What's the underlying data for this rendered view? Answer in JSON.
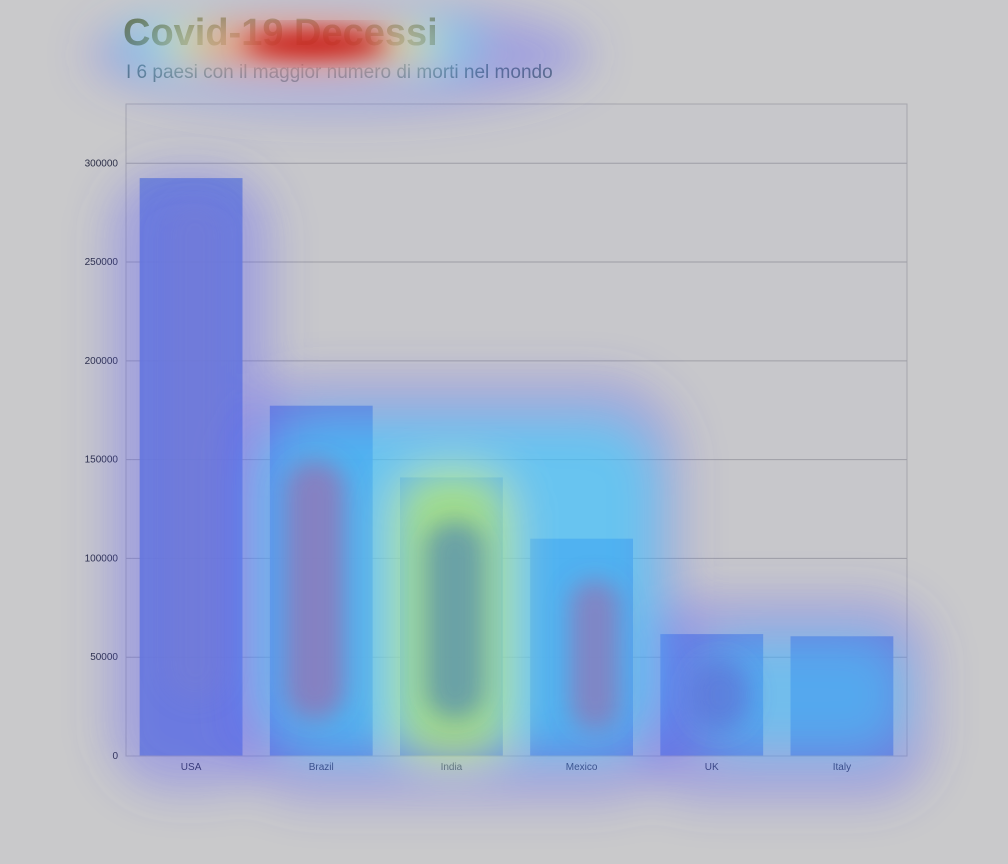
{
  "header": {
    "title": "Covid-19 Decessi",
    "subtitle": "I 6 paesi con il maggior numero di morti nel mondo"
  },
  "colors": {
    "background": "#c9c9cb",
    "plot_background": "#c7c7cb",
    "bar": "#6d86cf",
    "gridline": "#9e9ea6"
  },
  "chart_data": {
    "type": "bar",
    "title": "Covid-19 Decessi",
    "subtitle": "I 6 paesi con il maggior numero di morti nel mondo",
    "categories": [
      "USA",
      "Brazil",
      "India",
      "Mexico",
      "UK",
      "Italy"
    ],
    "values": [
      292500,
      177300,
      141000,
      110000,
      61700,
      60600
    ],
    "xlabel": "",
    "ylabel": "",
    "ylim": [
      0,
      330000
    ],
    "yticks": [
      0,
      50000,
      100000,
      150000,
      200000,
      250000,
      300000
    ],
    "ytick_labels": [
      "0",
      "50000",
      "100000",
      "150000",
      "200000",
      "250000",
      "300000"
    ],
    "grid": true,
    "legend": "none",
    "overlay": "attention heatmap"
  }
}
